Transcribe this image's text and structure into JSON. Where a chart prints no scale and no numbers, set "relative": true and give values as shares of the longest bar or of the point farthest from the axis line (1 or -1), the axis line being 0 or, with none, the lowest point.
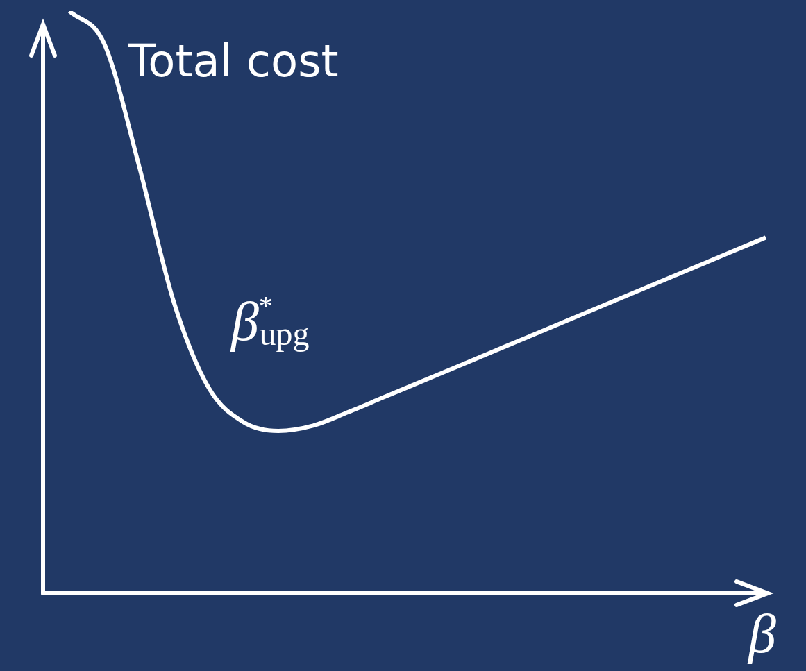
{
  "chart_data": {
    "type": "line",
    "relative": true,
    "xlabel": "β",
    "annotations": [
      "Total cost",
      "β$^{*}$$_{upg}$"
    ],
    "categories": [
      null,
      null,
      null,
      null,
      null,
      null,
      null,
      null,
      null,
      null,
      null,
      null,
      null,
      null,
      null,
      null,
      null,
      null,
      null,
      null,
      null
    ],
    "values": [
      1.0,
      0.944,
      0.734,
      0.5,
      0.353,
      0.294,
      0.279,
      0.288,
      0.311,
      0.336,
      0.361,
      0.386,
      0.411,
      0.436,
      0.461,
      0.486,
      0.511,
      0.536,
      0.561,
      0.586,
      0.611
    ],
    "color": "#ffffff",
    "marker": "none",
    "line_style": "solid"
  }
}
